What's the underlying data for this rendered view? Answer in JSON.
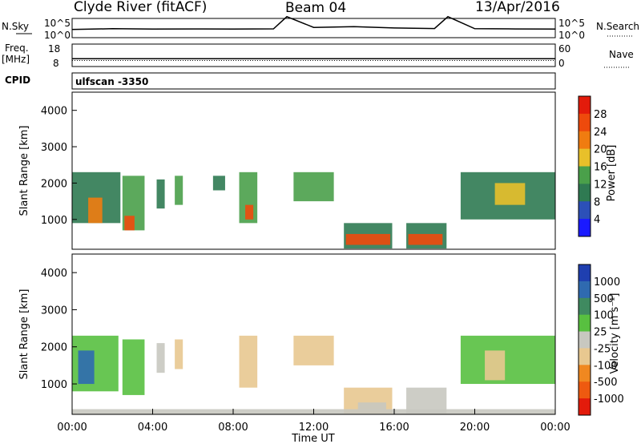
{
  "header": {
    "station": "Clyde River (fitACF)",
    "beam": "Beam 04",
    "date": "13/Apr/2016"
  },
  "panel_labels": {
    "nsky": "N.Sky",
    "nsearch": "N.Search",
    "freq": "Freq.",
    "freq_unit": "[MHz]",
    "nave": "Nave",
    "cpid": "CPID",
    "cpid_value": "ulfscan -3350"
  },
  "colors": {
    "power": [
      "#1a1aff",
      "#2c50b8",
      "#2f7a52",
      "#4aa04a",
      "#e8c02a",
      "#f07c10",
      "#ee4a0c",
      "#e31b0b"
    ],
    "velocity": [
      "#1f3fb0",
      "#2f6ab0",
      "#3f8a60",
      "#58c040",
      "#c8c8c0",
      "#e8c890",
      "#f08820",
      "#ee5a10",
      "#e31b0b"
    ]
  },
  "chart_data": [
    {
      "type": "line",
      "name": "noise",
      "ytick_labels_left": [
        "10^5",
        "10^0"
      ],
      "ytick_labels_right": [
        "10^5",
        "10^0"
      ],
      "x": [
        "00:00",
        "02:00",
        "04:00",
        "06:00",
        "08:00",
        "10:00",
        "10:40",
        "12:00",
        "14:00",
        "16:00",
        "18:00",
        "18:40",
        "20:00",
        "22:00",
        "24:00"
      ],
      "series": [
        {
          "values": [
            200,
            350,
            260,
            300,
            280,
            320,
            2000000,
            900,
            1500,
            600,
            400,
            2000000,
            350,
            300,
            280
          ]
        }
      ]
    },
    {
      "type": "line",
      "name": "frequency",
      "ytick_labels_left": [
        "18",
        "8"
      ],
      "ytick_labels_right": [
        "60",
        "0"
      ],
      "x": [
        "00:00",
        "06:00",
        "10:40",
        "12:00",
        "16:00",
        "18:40",
        "24:00"
      ],
      "series": [
        {
          "values": [
            10.5,
            10.5,
            10.5,
            10.5,
            10.5,
            10.5,
            10.5
          ]
        },
        {
          "values": [
            20,
            20,
            20,
            20,
            20,
            20,
            20
          ]
        }
      ]
    },
    {
      "type": "heatmap",
      "name": "power",
      "ylabel": "Slant Range [km]",
      "yticks": [
        1000,
        2000,
        3000,
        4000
      ],
      "ylim": [
        180,
        4500
      ],
      "colorbar": {
        "label": "Power [dB]",
        "tick_labels": [
          "4",
          "8",
          "12",
          "16",
          "20",
          "24",
          "28"
        ],
        "range": [
          0,
          32
        ]
      },
      "regions": [
        {
          "t0": 0.0,
          "t1": 2.4,
          "r0": 900,
          "r1": 2300,
          "v": 10
        },
        {
          "t0": 0.8,
          "t1": 1.5,
          "r0": 900,
          "r1": 1600,
          "v": 22
        },
        {
          "t0": 2.5,
          "t1": 3.6,
          "r0": 700,
          "r1": 2200,
          "v": 12
        },
        {
          "t0": 2.6,
          "t1": 3.1,
          "r0": 700,
          "r1": 1100,
          "v": 25
        },
        {
          "t0": 4.2,
          "t1": 4.6,
          "r0": 1300,
          "r1": 2100,
          "v": 11
        },
        {
          "t0": 5.1,
          "t1": 5.5,
          "r0": 1400,
          "r1": 2200,
          "v": 12
        },
        {
          "t0": 7.0,
          "t1": 7.6,
          "r0": 1800,
          "r1": 2200,
          "v": 10
        },
        {
          "t0": 8.3,
          "t1": 9.2,
          "r0": 900,
          "r1": 2300,
          "v": 14
        },
        {
          "t0": 8.6,
          "t1": 9.0,
          "r0": 1000,
          "r1": 1400,
          "v": 24
        },
        {
          "t0": 11.0,
          "t1": 13.0,
          "r0": 1500,
          "r1": 2300,
          "v": 12
        },
        {
          "t0": 13.5,
          "t1": 15.9,
          "r0": 200,
          "r1": 900,
          "v": 10
        },
        {
          "t0": 13.6,
          "t1": 15.8,
          "r0": 300,
          "r1": 600,
          "v": 27
        },
        {
          "t0": 16.6,
          "t1": 18.6,
          "r0": 200,
          "r1": 900,
          "v": 10
        },
        {
          "t0": 16.7,
          "t1": 18.4,
          "r0": 300,
          "r1": 600,
          "v": 27
        },
        {
          "t0": 19.3,
          "t1": 24.0,
          "r0": 1000,
          "r1": 2300,
          "v": 10
        },
        {
          "t0": 21.0,
          "t1": 22.5,
          "r0": 1400,
          "r1": 2000,
          "v": 17
        }
      ]
    },
    {
      "type": "heatmap",
      "name": "velocity",
      "ylabel": "Slant Range [km]",
      "yticks": [
        1000,
        2000,
        3000,
        4000
      ],
      "ylim": [
        180,
        4500
      ],
      "xlabel": "Time UT",
      "xtick_labels": [
        "00:00",
        "04:00",
        "08:00",
        "12:00",
        "16:00",
        "20:00",
        "00:00"
      ],
      "xlim": [
        0,
        24
      ],
      "colorbar": {
        "label": "Velocity [m s⁻¹]",
        "tick_labels": [
          "1000",
          "500",
          "100",
          "25",
          "-25",
          "-100",
          "-500",
          "-1000"
        ],
        "range": [
          -1200,
          1200
        ]
      },
      "regions": [
        {
          "t0": 0.0,
          "t1": 2.3,
          "r0": 800,
          "r1": 2300,
          "v": 300
        },
        {
          "t0": 0.3,
          "t1": 1.1,
          "r0": 1000,
          "r1": 1900,
          "v": 900
        },
        {
          "t0": 2.5,
          "t1": 3.6,
          "r0": 700,
          "r1": 2200,
          "v": 250
        },
        {
          "t0": 4.2,
          "t1": 4.6,
          "r0": 1300,
          "r1": 2100,
          "v": 40
        },
        {
          "t0": 5.1,
          "t1": 5.5,
          "r0": 1400,
          "r1": 2200,
          "v": -200
        },
        {
          "t0": 8.3,
          "t1": 9.2,
          "r0": 900,
          "r1": 2300,
          "v": -300
        },
        {
          "t0": 11.0,
          "t1": 13.0,
          "r0": 1500,
          "r1": 2300,
          "v": -250
        },
        {
          "t0": 13.5,
          "t1": 15.9,
          "r0": 200,
          "r1": 900,
          "v": -200
        },
        {
          "t0": 14.2,
          "t1": 15.6,
          "r0": 300,
          "r1": 500,
          "v": 60
        },
        {
          "t0": 16.6,
          "t1": 18.6,
          "r0": 200,
          "r1": 900,
          "v": 80
        },
        {
          "t0": 19.3,
          "t1": 24.0,
          "r0": 1000,
          "r1": 2300,
          "v": 200
        },
        {
          "t0": 20.5,
          "t1": 21.5,
          "r0": 1100,
          "r1": 1900,
          "v": -300
        },
        {
          "t0": 0.0,
          "t1": 24.0,
          "r0": 180,
          "r1": 320,
          "v": -40
        }
      ]
    }
  ]
}
